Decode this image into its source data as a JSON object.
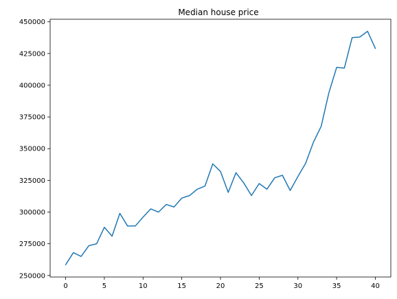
{
  "chart_data": {
    "type": "line",
    "title": "Median house price",
    "xlabel": "",
    "ylabel": "",
    "x": [
      0,
      1,
      2,
      3,
      4,
      5,
      6,
      7,
      8,
      9,
      10,
      11,
      12,
      13,
      14,
      15,
      16,
      17,
      18,
      19,
      20,
      21,
      22,
      23,
      24,
      25,
      26,
      27,
      28,
      29,
      30,
      31,
      32,
      33,
      34,
      35,
      36,
      37,
      38,
      39,
      40
    ],
    "series": [
      {
        "color": "#1f77b4",
        "values": [
          258500,
          268000,
          265000,
          273500,
          275000,
          288000,
          281000,
          299000,
          289000,
          289000,
          296000,
          302500,
          300000,
          306000,
          304000,
          311000,
          313000,
          318000,
          320500,
          338000,
          332000,
          315500,
          331000,
          323000,
          313000,
          322500,
          318000,
          327000,
          329000,
          317000,
          328000,
          338500,
          355000,
          367500,
          394000,
          414000,
          413500,
          437500,
          438000,
          442500,
          429000
        ]
      }
    ],
    "xlim": [
      -2,
      42
    ],
    "ylim": [
      248800,
      452000
    ],
    "xticks": [
      0,
      5,
      10,
      15,
      20,
      25,
      30,
      35,
      40
    ],
    "xtick_labels": [
      "0",
      "5",
      "10",
      "15",
      "20",
      "25",
      "30",
      "35",
      "40"
    ],
    "yticks": [
      250000,
      275000,
      300000,
      325000,
      350000,
      375000,
      400000,
      425000,
      450000
    ],
    "ytick_labels": [
      "250000",
      "275000",
      "300000",
      "325000",
      "350000",
      "375000",
      "400000",
      "425000",
      "450000"
    ],
    "grid": false,
    "legend": "none"
  }
}
